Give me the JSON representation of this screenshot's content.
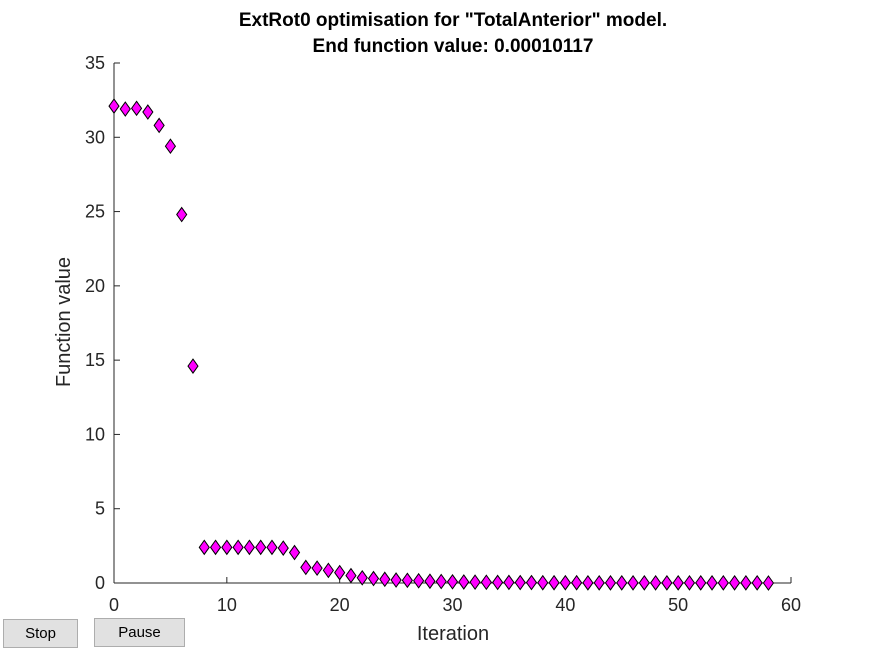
{
  "figure": {
    "title_lines": [
      "ExtRot0 optimisation for \"TotalAnterior\" model.",
      "End function value: 0.00010117"
    ]
  },
  "controls": {
    "stop_label": "Stop",
    "pause_label": "Pause"
  },
  "chart_data": {
    "type": "scatter",
    "title": "ExtRot0 optimisation for \"TotalAnterior\" model. End function value: 0.00010117",
    "xlabel": "Iteration",
    "ylabel": "Function value",
    "xlim": [
      0,
      60
    ],
    "ylim": [
      0,
      35
    ],
    "xticks": [
      0,
      10,
      20,
      30,
      40,
      50,
      60
    ],
    "yticks": [
      0,
      5,
      10,
      15,
      20,
      25,
      30,
      35
    ],
    "grid": false,
    "marker": "diamond",
    "marker_color": "#ff00ff",
    "marker_edge": "#000000",
    "x": [
      0,
      1,
      2,
      3,
      4,
      5,
      6,
      7,
      8,
      9,
      10,
      11,
      12,
      13,
      14,
      15,
      16,
      17,
      18,
      19,
      20,
      21,
      22,
      23,
      24,
      25,
      26,
      27,
      28,
      29,
      30,
      31,
      32,
      33,
      34,
      35,
      36,
      37,
      38,
      39,
      40,
      41,
      42,
      43,
      44,
      45,
      46,
      47,
      48,
      49,
      50,
      51,
      52,
      53,
      54,
      55,
      56,
      57,
      58
    ],
    "y": [
      32.1,
      31.9,
      31.95,
      31.7,
      30.8,
      29.4,
      24.8,
      14.6,
      2.4,
      2.4,
      2.4,
      2.4,
      2.4,
      2.4,
      2.4,
      2.35,
      2.05,
      1.05,
      1.0,
      0.85,
      0.7,
      0.5,
      0.35,
      0.3,
      0.25,
      0.2,
      0.18,
      0.15,
      0.12,
      0.1,
      0.08,
      0.07,
      0.06,
      0.05,
      0.04,
      0.04,
      0.03,
      0.03,
      0.02,
      0.02,
      0.02,
      0.02,
      0.01,
      0.01,
      0.01,
      0.01,
      0.01,
      0.01,
      0.01,
      0.01,
      0.01,
      0.01,
      0.01,
      0.01,
      0.01,
      0.01,
      0.01,
      0.01,
      0.0001
    ]
  }
}
